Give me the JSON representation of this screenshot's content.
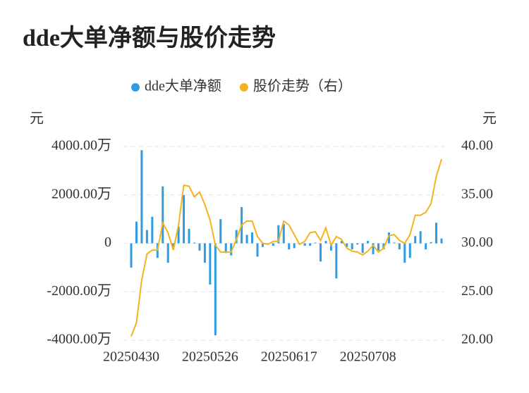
{
  "chart_data": {
    "type": "bar-line",
    "title": "dde大单净额与股价走势",
    "y_label": "元",
    "y2_label": "元",
    "categories": [
      "20250430",
      null,
      null,
      null,
      null,
      null,
      null,
      null,
      null,
      null,
      null,
      null,
      null,
      null,
      null,
      "20250526",
      null,
      null,
      null,
      null,
      null,
      null,
      null,
      null,
      null,
      null,
      null,
      null,
      null,
      null,
      "20250617",
      null,
      null,
      null,
      null,
      null,
      null,
      null,
      null,
      null,
      null,
      null,
      null,
      null,
      null,
      "20250708",
      null,
      null,
      null,
      null,
      null,
      null,
      null,
      null,
      null,
      null,
      null,
      null,
      null,
      null
    ],
    "series": [
      {
        "name": "dde大单净额",
        "type": "bar",
        "color": "#2e9be3",
        "values": [
          -1000,
          900,
          3850,
          550,
          1100,
          -600,
          2350,
          -800,
          -250,
          700,
          2000,
          600,
          30,
          -300,
          -800,
          -1700,
          -3800,
          1000,
          -400,
          -500,
          550,
          1500,
          350,
          450,
          -550,
          -150,
          -50,
          -100,
          750,
          800,
          -250,
          -200,
          -50,
          -100,
          -100,
          30,
          -750,
          100,
          -300,
          -1450,
          100,
          -150,
          -250,
          -50,
          -400,
          100,
          -450,
          -300,
          -250,
          450,
          30,
          -250,
          -800,
          -600,
          300,
          500,
          -250,
          50,
          850,
          200
        ]
      },
      {
        "name": "股价走势（右）",
        "type": "line",
        "axis": "y2",
        "color": "#f5b21f",
        "values": [
          20.4,
          21.8,
          26.2,
          28.9,
          29.3,
          29.3,
          32.1,
          31.1,
          29.3,
          31.9,
          36.0,
          35.9,
          34.8,
          35.3,
          34.0,
          32.4,
          29.8,
          29.1,
          29.1,
          29.1,
          30.4,
          31.9,
          32.3,
          32.3,
          30.7,
          30.0,
          29.9,
          30.2,
          30.2,
          32.3,
          31.9,
          30.9,
          29.9,
          30.2,
          31.1,
          31.2,
          30.3,
          31.6,
          29.8,
          30.7,
          30.4,
          29.5,
          29.2,
          29.1,
          28.8,
          29.2,
          29.8,
          29.1,
          29.5,
          30.8,
          30.9,
          30.3,
          30.0,
          30.9,
          32.9,
          32.9,
          33.2,
          34.1,
          36.9,
          38.7
        ]
      }
    ],
    "ylim": [
      -4000,
      4000
    ],
    "yticks": [
      {
        "value": -4000,
        "label": "-4000.00万"
      },
      {
        "value": -2000,
        "label": "-2000.00万"
      },
      0,
      {
        "value": 2000,
        "label": "2000.00万"
      },
      {
        "value": 4000,
        "label": "4000.00万"
      }
    ],
    "y2lim": [
      20,
      40
    ],
    "y2ticks": [
      {
        "value": 20,
        "label": "20.00"
      },
      {
        "value": 25,
        "label": "25.00"
      },
      {
        "value": 30,
        "label": "30.00"
      },
      {
        "value": 35,
        "label": "35.00"
      },
      {
        "value": 40,
        "label": "40.00"
      }
    ],
    "grid": true
  }
}
